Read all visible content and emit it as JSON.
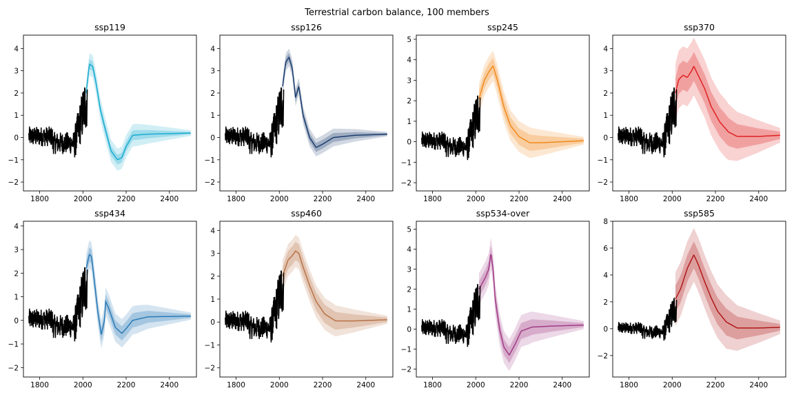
{
  "figure": {
    "suptitle": "Terrestrial carbon balance, 100 members"
  },
  "chart_data": [
    {
      "type": "line",
      "title": "ssp119",
      "color": "#1aaccf",
      "xlim": [
        1725,
        2525
      ],
      "ylim": [
        -2.4,
        4.6
      ],
      "xticks": [
        1800,
        2000,
        2200,
        2400
      ],
      "yticks": [
        -2,
        -1,
        0,
        1,
        2,
        3,
        4
      ],
      "series": [
        {
          "values": [
            [
              2015,
              2.0
            ],
            [
              2030,
              3.3
            ],
            [
              2045,
              3.2
            ],
            [
              2060,
              2.5
            ],
            [
              2080,
              1.3
            ],
            [
              2100,
              0.5
            ],
            [
              2130,
              -0.6
            ],
            [
              2160,
              -1.0
            ],
            [
              2180,
              -0.9
            ],
            [
              2200,
              -0.4
            ],
            [
              2230,
              0.1
            ],
            [
              2300,
              0.15
            ],
            [
              2500,
              0.2
            ]
          ]
        }
      ],
      "band_inner": [
        0.15,
        0.22
      ],
      "band_outer": [
        0.35,
        0.5
      ]
    },
    {
      "type": "line",
      "title": "ssp126",
      "color": "#1c3e6e",
      "xlim": [
        1725,
        2525
      ],
      "ylim": [
        -2.4,
        4.6
      ],
      "xticks": [
        1800,
        2000,
        2200,
        2400
      ],
      "yticks": [
        -2,
        -1,
        0,
        1,
        2,
        3,
        4
      ],
      "series": [
        {
          "values": [
            [
              2015,
              2.3
            ],
            [
              2030,
              3.4
            ],
            [
              2045,
              3.6
            ],
            [
              2060,
              3.1
            ],
            [
              2075,
              1.8
            ],
            [
              2090,
              2.3
            ],
            [
              2110,
              1.0
            ],
            [
              2140,
              0.0
            ],
            [
              2170,
              -0.45
            ],
            [
              2200,
              -0.3
            ],
            [
              2250,
              0.0
            ],
            [
              2350,
              0.1
            ],
            [
              2500,
              0.15
            ]
          ]
        }
      ],
      "band_inner": [
        0.15,
        0.2
      ],
      "band_outer": [
        0.3,
        0.4
      ]
    },
    {
      "type": "line",
      "title": "ssp245",
      "color": "#f08a1e",
      "xlim": [
        1725,
        2525
      ],
      "ylim": [
        -2.4,
        5.2
      ],
      "xticks": [
        1800,
        2000,
        2200,
        2400
      ],
      "yticks": [
        -2,
        -1,
        0,
        1,
        2,
        3,
        4,
        5
      ],
      "series": [
        {
          "values": [
            [
              2015,
              2.1
            ],
            [
              2040,
              3.0
            ],
            [
              2060,
              3.4
            ],
            [
              2080,
              3.7
            ],
            [
              2100,
              3.0
            ],
            [
              2130,
              1.7
            ],
            [
              2160,
              0.8
            ],
            [
              2200,
              0.25
            ],
            [
              2250,
              -0.05
            ],
            [
              2300,
              -0.05
            ],
            [
              2400,
              0.0
            ],
            [
              2500,
              0.05
            ]
          ]
        }
      ],
      "band_inner": [
        0.25,
        0.4
      ],
      "band_outer": [
        0.5,
        0.75
      ]
    },
    {
      "type": "line",
      "title": "ssp370",
      "color": "#e02020",
      "xlim": [
        1725,
        2525
      ],
      "ylim": [
        -2.4,
        4.6
      ],
      "xticks": [
        1800,
        2000,
        2200,
        2400
      ],
      "yticks": [
        -2,
        -1,
        0,
        1,
        2,
        3,
        4
      ],
      "series": [
        {
          "values": [
            [
              2015,
              2.0
            ],
            [
              2030,
              2.6
            ],
            [
              2050,
              2.8
            ],
            [
              2070,
              2.7
            ],
            [
              2090,
              3.0
            ],
            [
              2100,
              3.2
            ],
            [
              2120,
              2.8
            ],
            [
              2150,
              2.2
            ],
            [
              2180,
              1.4
            ],
            [
              2220,
              0.7
            ],
            [
              2260,
              0.25
            ],
            [
              2300,
              0.05
            ],
            [
              2400,
              0.05
            ],
            [
              2500,
              0.1
            ]
          ]
        }
      ],
      "band_inner": [
        0.35,
        0.65
      ],
      "band_outer": [
        0.7,
        1.3
      ]
    },
    {
      "type": "line",
      "title": "ssp434",
      "color": "#2a7ab6",
      "xlim": [
        1725,
        2525
      ],
      "ylim": [
        -2.4,
        4.2
      ],
      "xticks": [
        1800,
        2000,
        2200,
        2400
      ],
      "yticks": [
        -2,
        -1,
        0,
        1,
        2,
        3,
        4
      ],
      "series": [
        {
          "values": [
            [
              2015,
              2.2
            ],
            [
              2030,
              2.8
            ],
            [
              2040,
              2.7
            ],
            [
              2055,
              1.5
            ],
            [
              2070,
              0.3
            ],
            [
              2085,
              -0.6
            ],
            [
              2100,
              0.0
            ],
            [
              2105,
              0.8
            ],
            [
              2120,
              0.5
            ],
            [
              2150,
              -0.3
            ],
            [
              2180,
              -0.55
            ],
            [
              2200,
              -0.35
            ],
            [
              2230,
              0.0
            ],
            [
              2300,
              0.15
            ],
            [
              2500,
              0.18
            ]
          ]
        }
      ],
      "band_inner": [
        0.2,
        0.3
      ],
      "band_outer": [
        0.4,
        0.6
      ]
    },
    {
      "type": "line",
      "title": "ssp460",
      "color": "#b87248",
      "xlim": [
        1725,
        2525
      ],
      "ylim": [
        -2.4,
        4.4
      ],
      "xticks": [
        1800,
        2000,
        2200,
        2400
      ],
      "yticks": [
        -2,
        -1,
        0,
        1,
        2,
        3,
        4
      ],
      "series": [
        {
          "values": [
            [
              2015,
              2.0
            ],
            [
              2040,
              2.7
            ],
            [
              2060,
              2.9
            ],
            [
              2075,
              3.1
            ],
            [
              2090,
              3.0
            ],
            [
              2110,
              2.4
            ],
            [
              2140,
              1.6
            ],
            [
              2170,
              0.9
            ],
            [
              2210,
              0.35
            ],
            [
              2260,
              0.05
            ],
            [
              2350,
              0.05
            ],
            [
              2500,
              0.1
            ]
          ]
        }
      ],
      "band_inner": [
        0.25,
        0.4
      ],
      "band_outer": [
        0.45,
        0.7
      ]
    },
    {
      "type": "line",
      "title": "ssp534-over",
      "color": "#a03b86",
      "xlim": [
        1725,
        2525
      ],
      "ylim": [
        -2.4,
        5.4
      ],
      "xticks": [
        1800,
        2000,
        2200,
        2400
      ],
      "yticks": [
        -2,
        -1,
        0,
        1,
        2,
        3,
        4,
        5
      ],
      "series": [
        {
          "values": [
            [
              2015,
              2.0
            ],
            [
              2030,
              2.3
            ],
            [
              2045,
              2.6
            ],
            [
              2060,
              3.0
            ],
            [
              2070,
              3.8
            ],
            [
              2080,
              3.0
            ],
            [
              2090,
              1.5
            ],
            [
              2110,
              0.0
            ],
            [
              2130,
              -0.9
            ],
            [
              2155,
              -1.3
            ],
            [
              2180,
              -0.8
            ],
            [
              2210,
              -0.1
            ],
            [
              2260,
              0.1
            ],
            [
              2350,
              0.15
            ],
            [
              2500,
              0.2
            ]
          ]
        }
      ],
      "band_inner": [
        0.25,
        0.4
      ],
      "band_outer": [
        0.45,
        0.8
      ]
    },
    {
      "type": "line",
      "title": "ssp585",
      "color": "#b01818",
      "xlim": [
        1725,
        2525
      ],
      "ylim": [
        -3.6,
        8.0
      ],
      "xticks": [
        1800,
        2000,
        2200,
        2400
      ],
      "yticks": [
        -2,
        0,
        2,
        4,
        6,
        8
      ],
      "series": [
        {
          "values": [
            [
              2015,
              2.2
            ],
            [
              2040,
              3.0
            ],
            [
              2070,
              4.5
            ],
            [
              2100,
              5.5
            ],
            [
              2120,
              4.8
            ],
            [
              2150,
              3.5
            ],
            [
              2180,
              2.3
            ],
            [
              2210,
              1.3
            ],
            [
              2250,
              0.5
            ],
            [
              2300,
              0.05
            ],
            [
              2400,
              0.05
            ],
            [
              2500,
              0.1
            ]
          ]
        }
      ],
      "band_inner": [
        0.45,
        1.0
      ],
      "band_outer": [
        0.9,
        2.0
      ]
    }
  ]
}
